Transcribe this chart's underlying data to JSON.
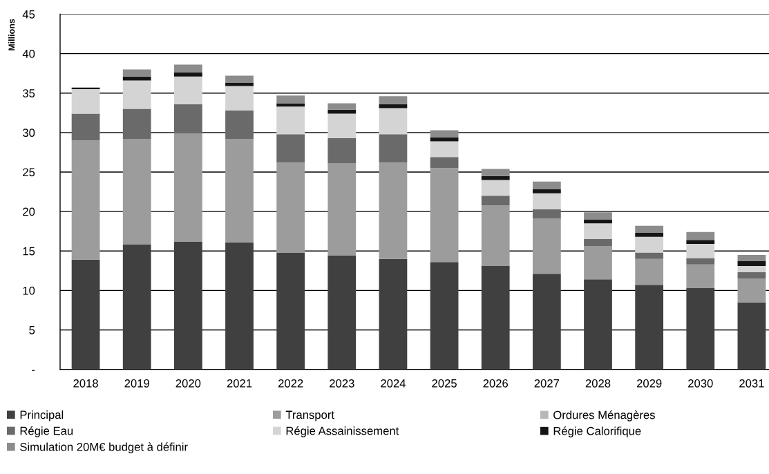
{
  "chart_data": {
    "type": "bar",
    "ylabel": "Millions",
    "stacked": true,
    "grid": "y",
    "legend": "bottom",
    "categories": [
      "2018",
      "2019",
      "2020",
      "2021",
      "2022",
      "2023",
      "2024",
      "2025",
      "2026",
      "2027",
      "2028",
      "2029",
      "2030",
      "2031"
    ],
    "ylim": [
      0,
      45
    ],
    "yticks": [
      {
        "value": 0,
        "label": "-"
      },
      5,
      10,
      15,
      20,
      25,
      30,
      35,
      40,
      45
    ],
    "series": [
      {
        "name": "Principal",
        "color": "#404040",
        "values": [
          13.9,
          15.8,
          16.2,
          16.1,
          14.8,
          14.4,
          14.0,
          13.6,
          13.1,
          12.1,
          11.4,
          10.7,
          10.3,
          8.5
        ]
      },
      {
        "name": "Transport",
        "color": "#9c9c9c",
        "values": [
          15.1,
          13.4,
          13.7,
          13.1,
          11.4,
          11.7,
          12.2,
          11.9,
          7.7,
          7.0,
          4.2,
          3.3,
          3.0,
          3.0
        ]
      },
      {
        "name": "Ordures Ménagères",
        "color": "#b8b8b8",
        "values": [
          null,
          null,
          null,
          null,
          null,
          null,
          null,
          null,
          null,
          null,
          null,
          null,
          null,
          null
        ]
      },
      {
        "name": "Régie Eau",
        "color": "#6a6a6a",
        "values": [
          3.4,
          3.8,
          3.7,
          3.6,
          3.6,
          3.2,
          3.6,
          1.4,
          1.2,
          1.2,
          0.9,
          0.8,
          0.8,
          0.8
        ]
      },
      {
        "name": "Régie Assainissement",
        "color": "#d4d4d4",
        "values": [
          3.1,
          3.6,
          3.5,
          3.1,
          3.5,
          3.1,
          3.3,
          2.0,
          2.0,
          2.0,
          2.0,
          2.0,
          1.8,
          0.8
        ]
      },
      {
        "name": "Régie Calorifique",
        "color": "#151515",
        "values": [
          0.2,
          0.5,
          0.5,
          0.4,
          0.4,
          0.5,
          0.5,
          0.5,
          0.5,
          0.5,
          0.5,
          0.5,
          0.5,
          0.6
        ]
      },
      {
        "name": "Simulation 20M€ budget à définir",
        "color": "#8c8c8c",
        "values": [
          null,
          0.9,
          1.0,
          0.9,
          1.0,
          0.8,
          1.0,
          0.9,
          0.9,
          1.0,
          0.9,
          0.9,
          1.0,
          0.8
        ]
      }
    ]
  }
}
